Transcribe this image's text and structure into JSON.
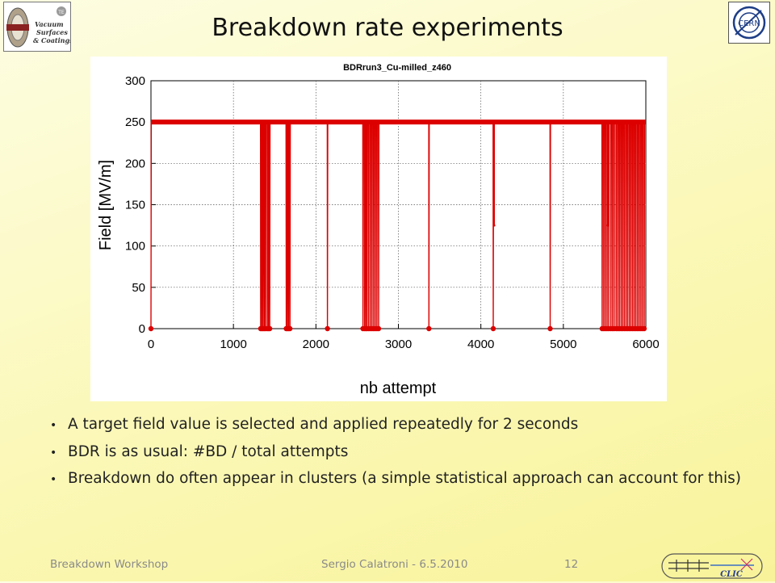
{
  "slide": {
    "title": "Breakdown rate experiments",
    "logo_left": {
      "name": "vacuum-surfaces-coatings-logo",
      "text_lines": [
        "Vacuum",
        "Surfaces",
        "& Coatings"
      ],
      "badge": "TE"
    },
    "logo_right": {
      "name": "cern-logo",
      "text": "CERN"
    },
    "bullets": [
      "A target field value is selected and applied repeatedly for 2 seconds",
      "BDR is as usual:  #BD / total attempts",
      "Breakdown do often appear in clusters (a simple statistical approach can account for this)"
    ],
    "footer": {
      "left": "Breakdown Workshop",
      "center": "Sergio Calatroni - 6.5.2010",
      "page": "12"
    },
    "clic_logo_text": "CLIC"
  },
  "colors": {
    "series": "#dd0000",
    "grid": "#555555",
    "title": "#111111",
    "body_text": "#222222",
    "footer_text": "#8a8a8a"
  },
  "chart_data": {
    "type": "line",
    "title": "BDRrun3_Cu-milled_z460",
    "xlabel": "nb attempt",
    "ylabel": "Field [MV/m]",
    "xlim": [
      0,
      6000
    ],
    "ylim": [
      0,
      300
    ],
    "xticks": [
      0,
      1000,
      2000,
      3000,
      4000,
      5000,
      6000
    ],
    "yticks": [
      0,
      50,
      100,
      150,
      200,
      250,
      300
    ],
    "grid": true,
    "legend": "none",
    "series": [
      {
        "base_value": 250,
        "breakdown_value": 0,
        "breakdown_attempts": [
          0,
          1330,
          1345,
          1360,
          1375,
          1390,
          1410,
          1425,
          1440,
          1640,
          1655,
          1670,
          1685,
          2140,
          2570,
          2590,
          2605,
          2620,
          2640,
          2660,
          2680,
          2700,
          2720,
          2740,
          2760,
          3370,
          4150,
          4840,
          5470,
          5490,
          5510,
          5530,
          5550,
          5575,
          5595,
          5615,
          5640,
          5660,
          5680,
          5700,
          5720,
          5740,
          5760,
          5780,
          5800,
          5820,
          5840,
          5860,
          5880,
          5900,
          5920,
          5940,
          5960,
          5980
        ],
        "partial_points": [
          [
            1375,
            125
          ],
          [
            1660,
            125
          ],
          [
            2600,
            125
          ],
          [
            4160,
            125
          ],
          [
            5535,
            125
          ]
        ]
      }
    ]
  }
}
